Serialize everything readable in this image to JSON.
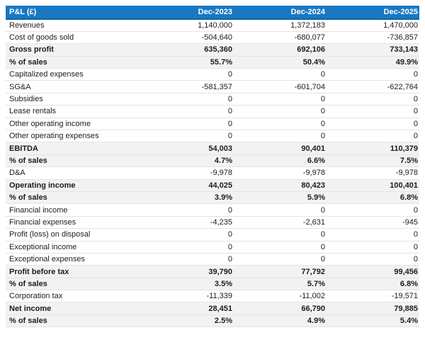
{
  "colors": {
    "header_bg": "#1878c4",
    "header_text": "#ffffff",
    "header_border": "#1365a5",
    "emphasis_row_bg": "#f2f2f2",
    "row_border": "#e4e4e4"
  },
  "chart_data": {
    "type": "table",
    "title": "P&L (£)",
    "header_label": "P&L (£)",
    "categories": [
      "Dec-2023",
      "Dec-2024",
      "Dec-2025"
    ],
    "rows": [
      {
        "label": "Revenues",
        "values": [
          "1,140,000",
          "1,372,183",
          "1,470,000"
        ],
        "emphasis": false
      },
      {
        "label": "Cost of goods sold",
        "values": [
          "-504,640",
          "-680,077",
          "-736,857"
        ],
        "emphasis": false
      },
      {
        "label": "Gross profit",
        "values": [
          "635,360",
          "692,106",
          "733,143"
        ],
        "emphasis": true
      },
      {
        "label": "% of sales",
        "values": [
          "55.7%",
          "50.4%",
          "49.9%"
        ],
        "emphasis": true
      },
      {
        "label": "Capitalized expenses",
        "values": [
          "0",
          "0",
          "0"
        ],
        "emphasis": false
      },
      {
        "label": "SG&A",
        "values": [
          "-581,357",
          "-601,704",
          "-622,764"
        ],
        "emphasis": false
      },
      {
        "label": "Subsidies",
        "values": [
          "0",
          "0",
          "0"
        ],
        "emphasis": false
      },
      {
        "label": "Lease rentals",
        "values": [
          "0",
          "0",
          "0"
        ],
        "emphasis": false
      },
      {
        "label": "Other operating income",
        "values": [
          "0",
          "0",
          "0"
        ],
        "emphasis": false
      },
      {
        "label": "Other operating expenses",
        "values": [
          "0",
          "0",
          "0"
        ],
        "emphasis": false
      },
      {
        "label": "EBITDA",
        "values": [
          "54,003",
          "90,401",
          "110,379"
        ],
        "emphasis": true
      },
      {
        "label": "% of sales",
        "values": [
          "4.7%",
          "6.6%",
          "7.5%"
        ],
        "emphasis": true
      },
      {
        "label": "D&A",
        "values": [
          "-9,978",
          "-9,978",
          "-9,978"
        ],
        "emphasis": false
      },
      {
        "label": "Operating income",
        "values": [
          "44,025",
          "80,423",
          "100,401"
        ],
        "emphasis": true
      },
      {
        "label": "% of sales",
        "values": [
          "3.9%",
          "5.9%",
          "6.8%"
        ],
        "emphasis": true
      },
      {
        "label": "Financial income",
        "values": [
          "0",
          "0",
          "0"
        ],
        "emphasis": false
      },
      {
        "label": "Financial expenses",
        "values": [
          "-4,235",
          "-2,631",
          "-945"
        ],
        "emphasis": false
      },
      {
        "label": "Profit (loss) on disposal",
        "values": [
          "0",
          "0",
          "0"
        ],
        "emphasis": false
      },
      {
        "label": "Exceptional income",
        "values": [
          "0",
          "0",
          "0"
        ],
        "emphasis": false
      },
      {
        "label": "Exceptional expenses",
        "values": [
          "0",
          "0",
          "0"
        ],
        "emphasis": false
      },
      {
        "label": "Profit before tax",
        "values": [
          "39,790",
          "77,792",
          "99,456"
        ],
        "emphasis": true
      },
      {
        "label": "% of sales",
        "values": [
          "3.5%",
          "5.7%",
          "6.8%"
        ],
        "emphasis": true
      },
      {
        "label": "Corporation tax",
        "values": [
          "-11,339",
          "-11,002",
          "-19,571"
        ],
        "emphasis": false
      },
      {
        "label": "Net income",
        "values": [
          "28,451",
          "66,790",
          "79,885"
        ],
        "emphasis": true
      },
      {
        "label": "% of sales",
        "values": [
          "2.5%",
          "4.9%",
          "5.4%"
        ],
        "emphasis": true
      }
    ]
  }
}
